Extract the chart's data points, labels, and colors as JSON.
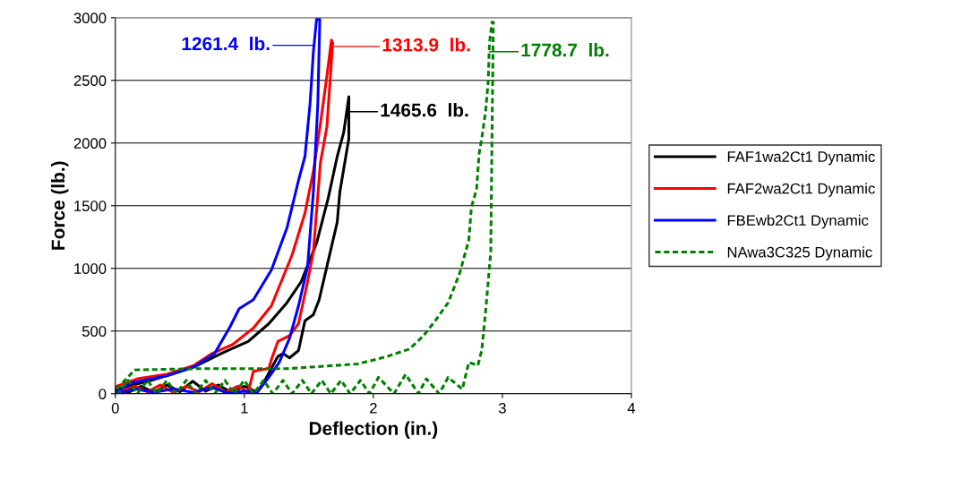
{
  "chart_data": {
    "type": "line",
    "xlabel": "Deflection (in.)",
    "ylabel": "Force (lb.)",
    "xlim": [
      0,
      4
    ],
    "ylim": [
      0,
      3000
    ],
    "xticks": [
      0,
      1,
      2,
      3,
      4
    ],
    "yticks": [
      0,
      500,
      1000,
      1500,
      2000,
      2500,
      3000
    ],
    "grid": "y",
    "legend": "right",
    "marker": "none",
    "series": [
      {
        "name": "FAF1wa2Ct1 Dynamic",
        "color": "#000000",
        "line_style": "solid",
        "x": [
          0.01,
          0.28,
          0.61,
          0.82,
          1.03,
          1.19,
          1.33,
          1.44,
          1.56,
          1.65,
          1.72,
          1.77,
          1.81,
          1.81,
          1.74,
          1.72,
          1.65,
          1.58,
          1.535,
          1.47,
          1.42,
          1.35,
          1.3,
          1.26,
          1.16,
          1.1,
          1.0,
          0.9,
          0.8,
          0.7,
          0.6,
          0.5,
          0.4,
          0.3,
          0.2,
          0.1,
          0.02
        ],
        "values": [
          36,
          107,
          214,
          321,
          417,
          559,
          726,
          893,
          1202,
          1560,
          1893,
          2083,
          2369,
          2036,
          1607,
          1369,
          1060,
          750,
          631,
          583,
          345,
          286,
          321,
          298,
          107,
          12,
          60,
          10,
          70,
          20,
          100,
          15,
          70,
          10,
          60,
          10,
          40
        ]
      },
      {
        "name": "FAF2wa2Ct1 Dynamic",
        "color": "#ff0000",
        "line_style": "solid",
        "x": [
          0.01,
          0.17,
          0.4,
          0.61,
          0.75,
          0.91,
          1.07,
          1.21,
          1.37,
          1.47,
          1.535,
          1.59,
          1.64,
          1.675,
          1.685,
          1.64,
          1.59,
          1.535,
          1.49,
          1.42,
          1.35,
          1.26,
          1.21,
          1.19,
          1.07,
          1.03,
          0.95,
          0.85,
          0.75,
          0.65,
          0.55,
          0.45,
          0.35,
          0.25,
          0.15,
          0.05
        ],
        "values": [
          60,
          119,
          155,
          226,
          321,
          393,
          524,
          702,
          1107,
          1441,
          1774,
          2155,
          2536,
          2821,
          2798,
          2131,
          1845,
          1131,
          893,
          559,
          464,
          417,
          274,
          202,
          179,
          12,
          60,
          10,
          80,
          15,
          60,
          10,
          70,
          15,
          60,
          20
        ]
      },
      {
        "name": "FBEwb2Ct1 Dynamic",
        "color": "#0000ff",
        "line_style": "solid",
        "x": [
          0.01,
          0.12,
          0.4,
          0.61,
          0.77,
          0.89,
          0.96,
          1.07,
          1.21,
          1.33,
          1.42,
          1.47,
          1.51,
          1.535,
          1.56,
          1.585,
          1.57,
          1.535,
          1.49,
          1.42,
          1.35,
          1.27,
          1.19,
          1.1,
          1.0,
          0.875,
          0.75,
          0.6,
          0.45,
          0.3,
          0.15,
          0.05
        ],
        "values": [
          15,
          85,
          143,
          214,
          321,
          536,
          679,
          750,
          988,
          1321,
          1702,
          1893,
          2321,
          2726,
          2988,
          2988,
          2321,
          1607,
          1012,
          702,
          441,
          250,
          131,
          12,
          20,
          5,
          50,
          10,
          40,
          10,
          40,
          10
        ]
      },
      {
        "name": "NAwa3C325 Dynamic",
        "color": "#008000",
        "line_style": "dashed",
        "x": [
          0.01,
          0.15,
          0.64,
          1.33,
          1.88,
          2.11,
          2.28,
          2.39,
          2.48,
          2.58,
          2.67,
          2.74,
          2.76,
          2.8,
          2.82,
          2.84,
          2.87,
          2.89,
          2.9,
          2.92,
          2.93,
          2.92,
          2.91,
          2.89,
          2.87,
          2.84,
          2.81,
          2.74,
          2.69,
          2.58,
          2.51,
          2.41,
          2.35,
          2.25,
          2.16,
          2.04,
          1.97,
          1.9,
          1.82,
          1.75,
          1.67,
          1.6,
          1.52,
          1.45,
          1.37,
          1.3,
          1.22,
          1.15,
          1.07,
          1.0,
          0.92,
          0.85,
          0.77,
          0.7,
          0.62,
          0.55,
          0.47,
          0.4,
          0.32,
          0.25,
          0.17,
          0.1,
          0.02
        ],
        "values": [
          36,
          190,
          200,
          200,
          238,
          298,
          357,
          464,
          583,
          726,
          964,
          1226,
          1488,
          1631,
          1917,
          2036,
          2250,
          2488,
          2798,
          2964,
          2964,
          2083,
          1131,
          893,
          655,
          345,
          226,
          250,
          36,
          131,
          0,
          119,
          0,
          155,
          0,
          131,
          0,
          107,
          0,
          107,
          0,
          107,
          0,
          107,
          0,
          107,
          0,
          107,
          0,
          107,
          0,
          107,
          0,
          107,
          0,
          107,
          0,
          107,
          0,
          107,
          0,
          107,
          0
        ]
      }
    ],
    "annotations": [
      {
        "text": "1261.4  lb.",
        "x": 1.54,
        "y": 2780
      },
      {
        "text": "1313.9  lb.",
        "x": 1.68,
        "y": 2771
      },
      {
        "text": "1465.6  lb.",
        "x": 1.81,
        "y": 2250
      },
      {
        "text": "1778.7  lb.",
        "x": 2.9,
        "y": 2729
      }
    ]
  }
}
